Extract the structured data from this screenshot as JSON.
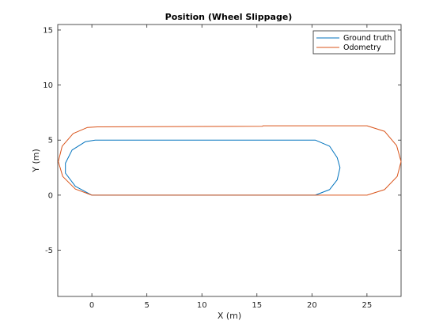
{
  "chart_data": {
    "type": "line",
    "title": "Position (Wheel Slippage)",
    "xlabel": "X (m)",
    "ylabel": "Y (m)",
    "xlim": [
      -3.1,
      28.1
    ],
    "ylim": [
      -9.2,
      15.5
    ],
    "xticks": [
      0,
      5,
      10,
      15,
      20,
      25
    ],
    "xtick_labels": [
      "0",
      "5",
      "10",
      "15",
      "20",
      "25"
    ],
    "yticks": [
      -5,
      0,
      5,
      10,
      15
    ],
    "ytick_labels": [
      "-5",
      "0",
      "5",
      "10",
      "15"
    ],
    "grid": false,
    "legend_position": "top-right",
    "series": [
      {
        "name": "Ground truth",
        "color": "#0072BD",
        "points": [
          [
            0,
            0
          ],
          [
            -1.5,
            0.8
          ],
          [
            -2.4,
            2.0
          ],
          [
            -2.4,
            2.9
          ],
          [
            -1.8,
            4.1
          ],
          [
            -0.6,
            4.85
          ],
          [
            0.3,
            5.0
          ],
          [
            20.3,
            5.0
          ],
          [
            21.6,
            4.45
          ],
          [
            22.3,
            3.4
          ],
          [
            22.55,
            2.5
          ],
          [
            22.3,
            1.4
          ],
          [
            21.6,
            0.5
          ],
          [
            20.3,
            0.0
          ],
          [
            0,
            0
          ]
        ]
      },
      {
        "name": "Odometry",
        "color": "#D95319",
        "points": [
          [
            0,
            0
          ],
          [
            -1.5,
            0.55
          ],
          [
            -2.65,
            1.7
          ],
          [
            -3.05,
            3.05
          ],
          [
            -2.7,
            4.45
          ],
          [
            -1.7,
            5.6
          ],
          [
            -0.4,
            6.15
          ],
          [
            0.5,
            6.2
          ],
          [
            15.5,
            6.25
          ],
          [
            15.55,
            6.3
          ],
          [
            25.0,
            6.3
          ],
          [
            26.6,
            5.8
          ],
          [
            27.7,
            4.5
          ],
          [
            28.1,
            3.05
          ],
          [
            27.75,
            1.7
          ],
          [
            26.6,
            0.5
          ],
          [
            25.0,
            0.0
          ],
          [
            0,
            0
          ]
        ]
      }
    ]
  }
}
